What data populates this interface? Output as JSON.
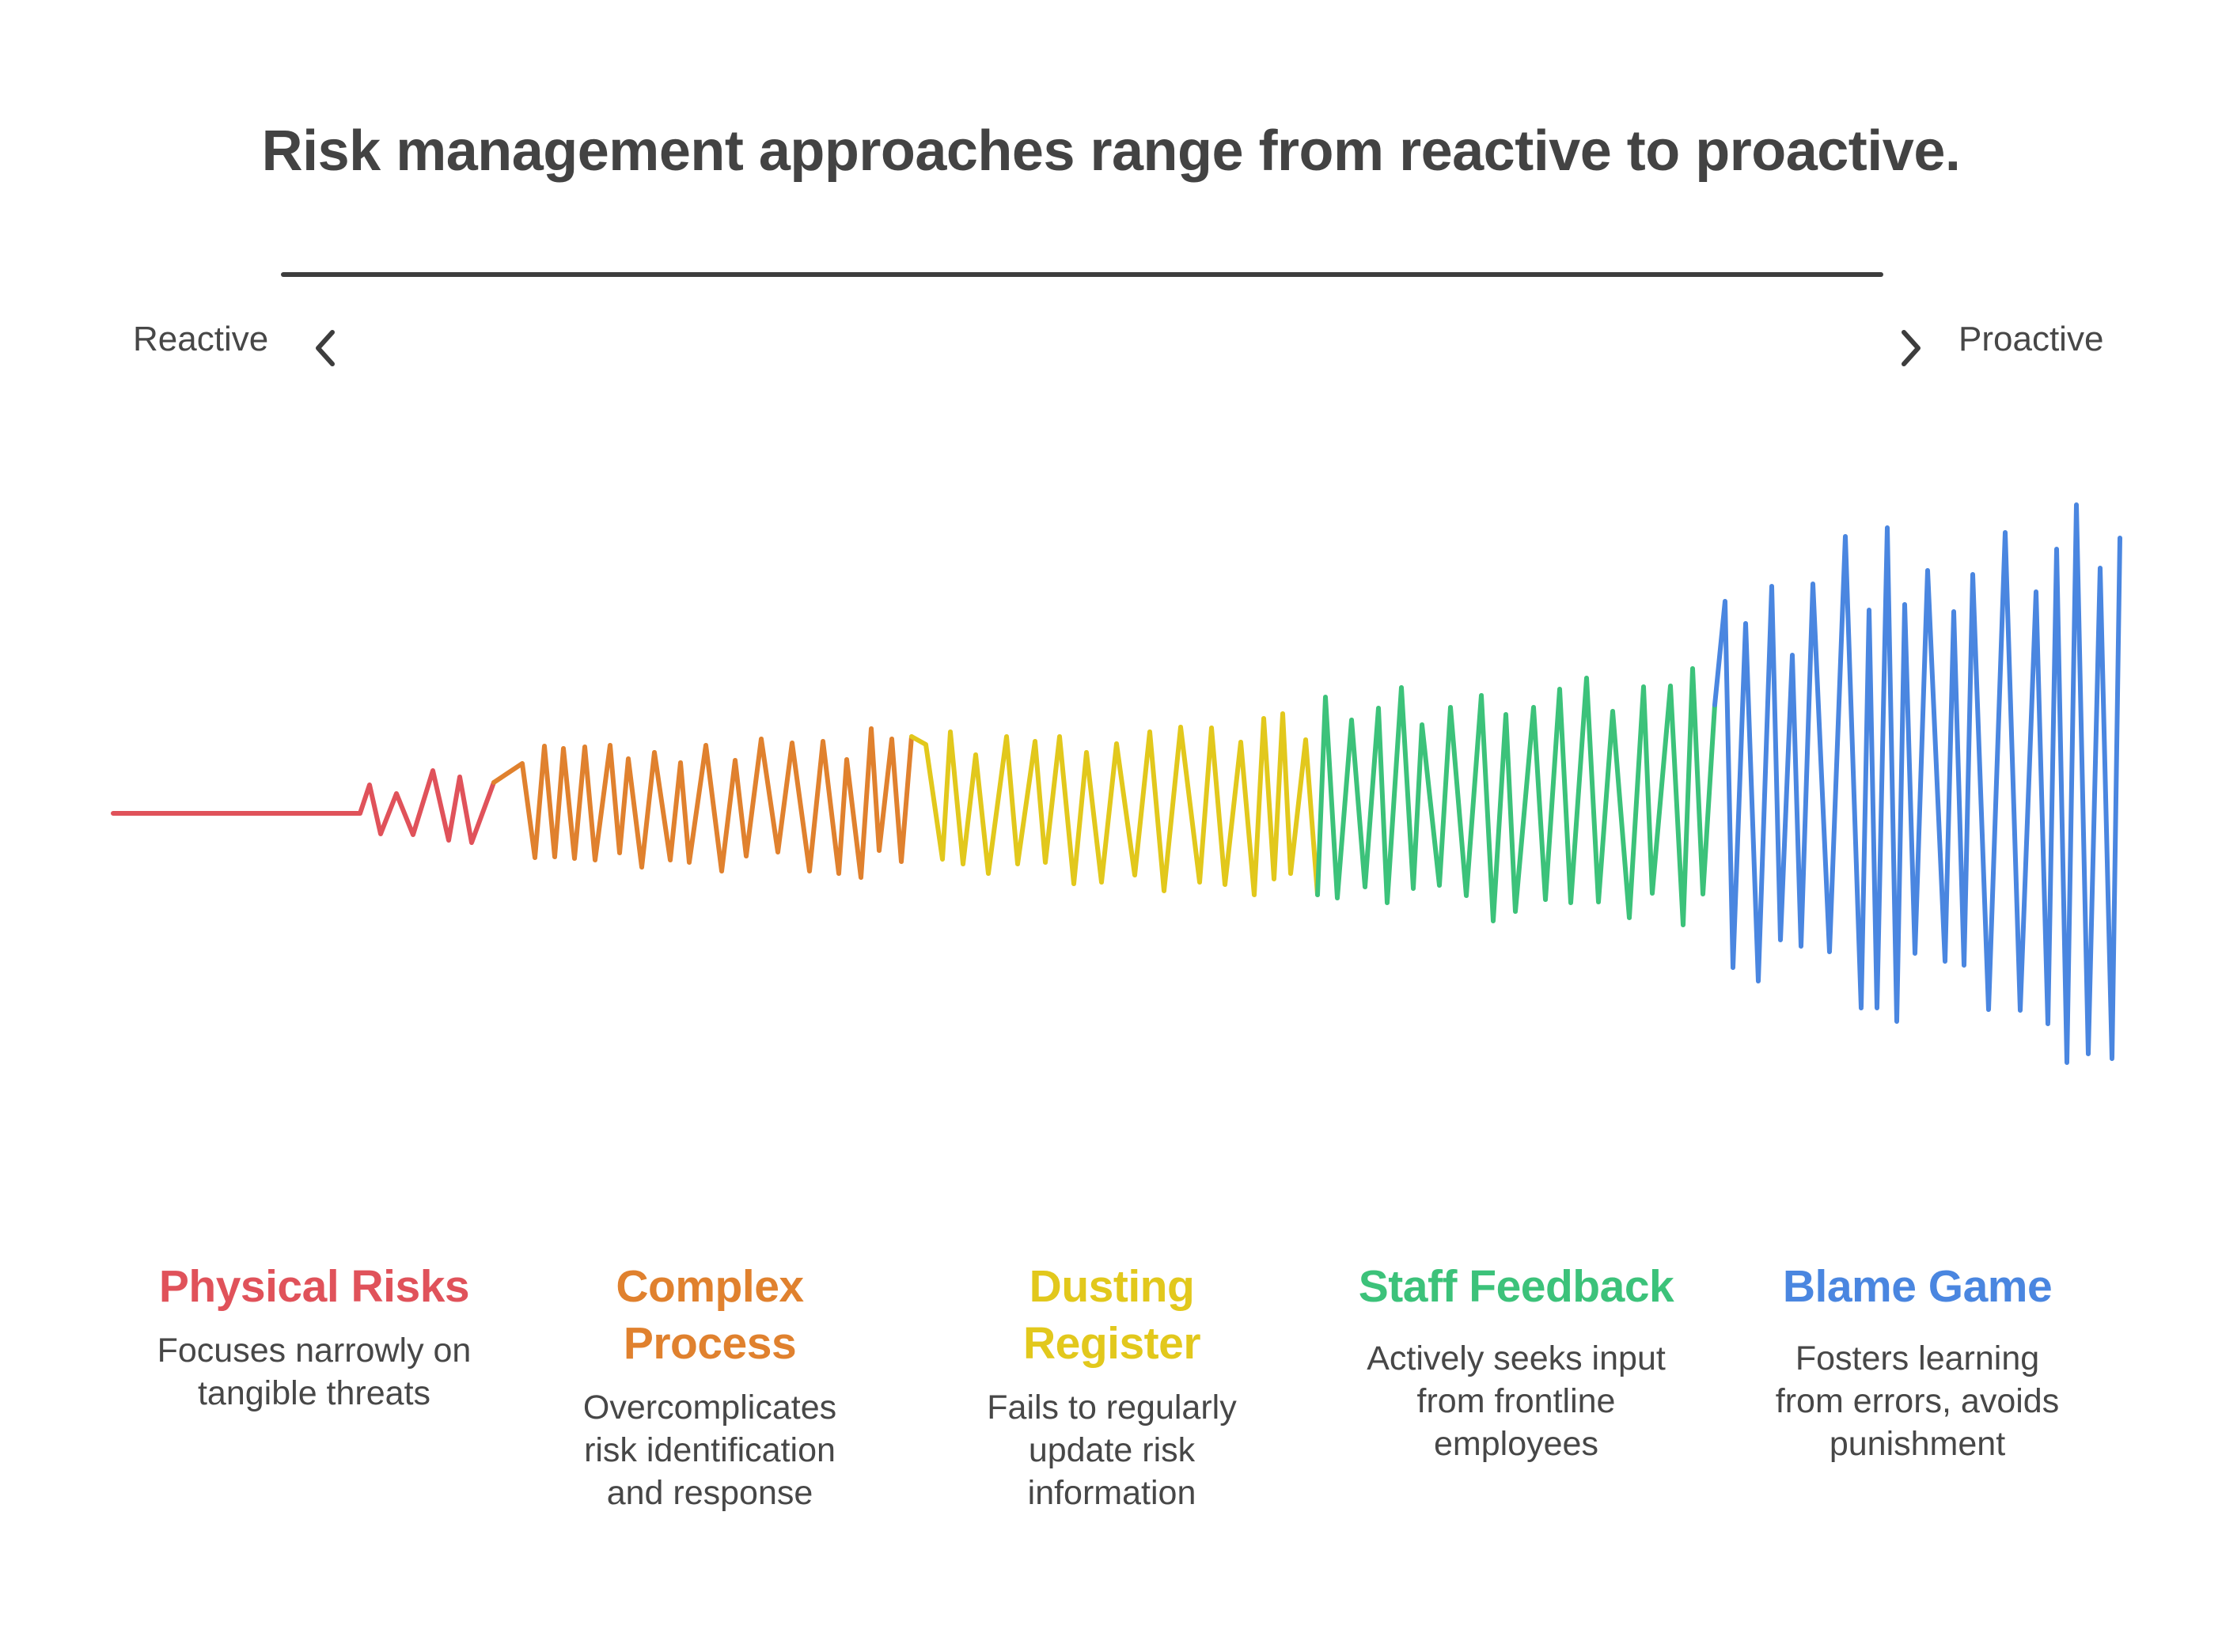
{
  "title": "Risk management approaches range from reactive to proactive.",
  "scale": {
    "left_label": "Reactive",
    "right_label": "Proactive",
    "left_icon": "chevron-left-icon",
    "right_icon": "chevron-right-icon"
  },
  "sections": [
    {
      "title": "Physical Risks",
      "description": "Focuses narrowly on tangible threats",
      "color": "#E0525A"
    },
    {
      "title": "Complex Process",
      "description": "Overcomplicates risk identification and response",
      "color": "#E0812E"
    },
    {
      "title": "Dusting Register",
      "description": "Fails to regularly update risk information",
      "color": "#E2C81C"
    },
    {
      "title": "Staff Feedback",
      "description": "Actively seeks input from frontline employees",
      "color": "#3CC27A"
    },
    {
      "title": "Blame Game",
      "description": "Fosters learning from errors, avoids punishment",
      "color": "#4A86E0"
    }
  ]
}
